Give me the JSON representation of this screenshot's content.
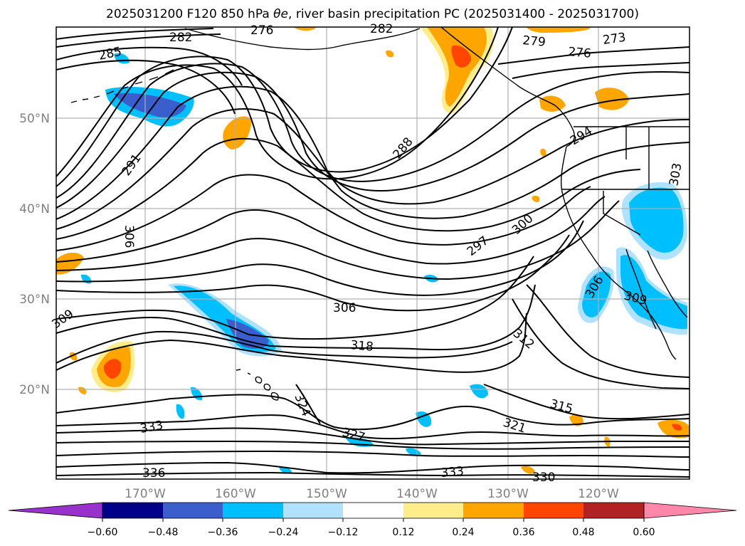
{
  "title": {
    "run": "2025031200 F120 850 hPa",
    "variable_symbol": "θe",
    "rest": ", river basin precipitation PC (2025031400 - 2025031700)"
  },
  "map": {
    "lat_ticks": [
      "50°N",
      "40°N",
      "30°N",
      "20°N"
    ],
    "lon_ticks": [
      "170°W",
      "160°W",
      "150°W",
      "140°W",
      "130°W",
      "120°W"
    ],
    "contour_labels": [
      "282",
      "285",
      "291",
      "288",
      "279",
      "276",
      "273",
      "294",
      "300",
      "297",
      "303",
      "306",
      "306",
      "306",
      "309",
      "309",
      "312",
      "318",
      "315",
      "321",
      "324",
      "327",
      "333",
      "333",
      "336",
      "330",
      "276",
      "282"
    ],
    "coastline_color": "#000000",
    "contour_color": "#000000",
    "grid_color": "#b0b0b0"
  },
  "colorbar": {
    "colors": [
      "#9932CC",
      "#00008B",
      "#3A5FCD",
      "#00BFFF",
      "#B0E2FF",
      "#FFFFFF",
      "#FFEC8B",
      "#FFA500",
      "#FF4500",
      "#B22222",
      "#FF88AA"
    ],
    "ticks": [
      "−0.60",
      "−0.48",
      "−0.36",
      "−0.24",
      "−0.12",
      "0.12",
      "0.24",
      "0.36",
      "0.48",
      "0.60"
    ]
  }
}
